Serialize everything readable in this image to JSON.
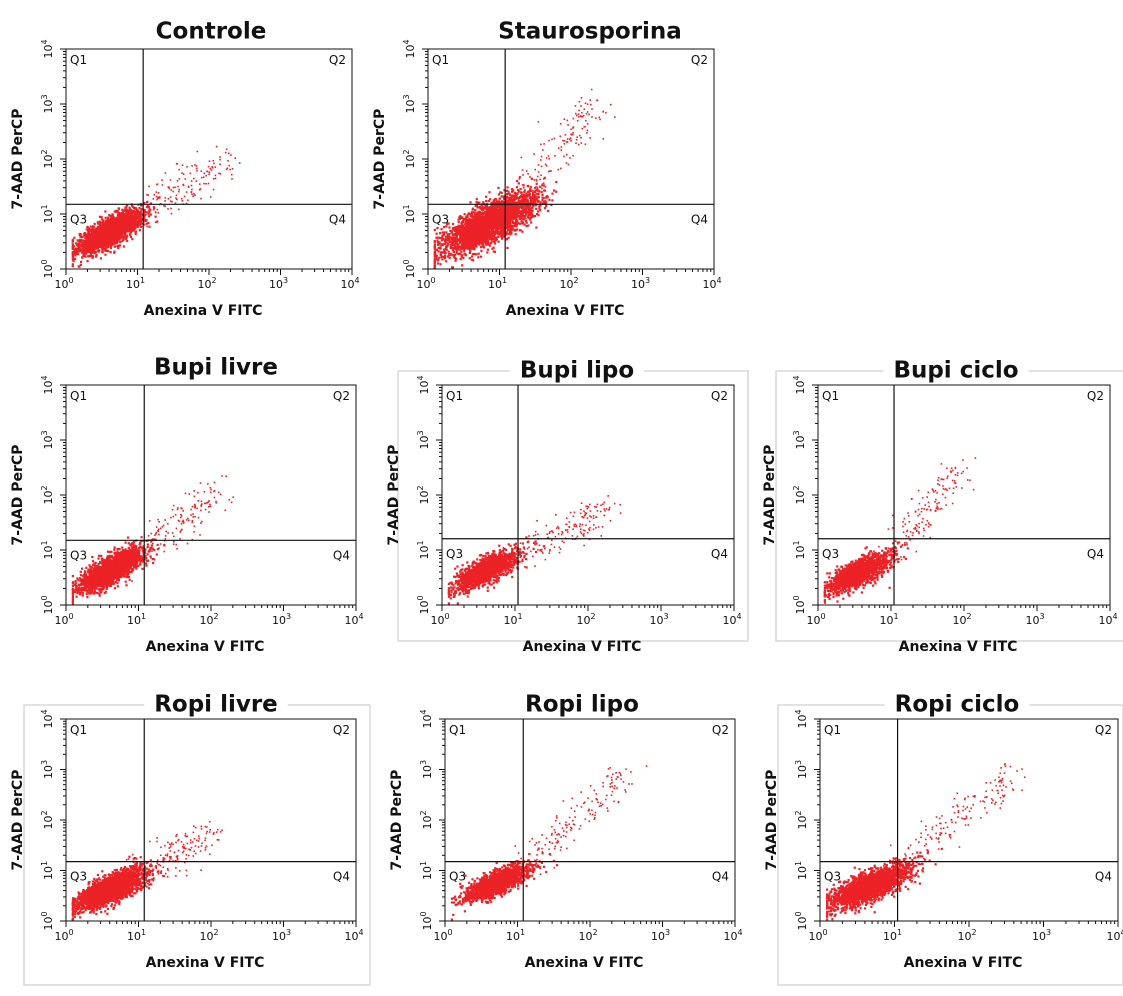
{
  "chart_data": [
    {
      "type": "scatter",
      "title": "Controle",
      "xlabel": "Anexina V FITC",
      "ylabel": "7-AAD PerCP",
      "xscale": "log",
      "yscale": "log",
      "xlim": [
        1,
        10000
      ],
      "ylim": [
        1,
        10000
      ],
      "x_ticks": [
        "10^0",
        "10^1",
        "10^2",
        "10^3",
        "10^4"
      ],
      "y_ticks": [
        "10^0",
        "10^1",
        "10^2",
        "10^3",
        "10^4"
      ],
      "quadrant_gate": {
        "x": 12,
        "y": 15
      },
      "quadrant_labels": [
        "Q1",
        "Q2",
        "Q3",
        "Q4"
      ],
      "population": {
        "center": [
          4,
          5
        ],
        "spread": [
          0.22,
          0.19
        ],
        "tail_to": [
          180,
          100
        ],
        "density": "high"
      },
      "frame": false
    },
    {
      "type": "scatter",
      "title": "Staurosporina",
      "xlabel": "Anexina V FITC",
      "ylabel": "7-AAD PerCP",
      "xscale": "log",
      "yscale": "log",
      "xlim": [
        1,
        10000
      ],
      "ylim": [
        1,
        10000
      ],
      "x_ticks": [
        "10^0",
        "10^1",
        "10^2",
        "10^3",
        "10^4"
      ],
      "y_ticks": [
        "10^0",
        "10^1",
        "10^2",
        "10^3",
        "10^4"
      ],
      "quadrant_gate": {
        "x": 12,
        "y": 15
      },
      "quadrant_labels": [
        "Q1",
        "Q2",
        "Q3",
        "Q4"
      ],
      "population": {
        "center": [
          7,
          7
        ],
        "spread": [
          0.32,
          0.27
        ],
        "tail_to": [
          220,
          1100
        ],
        "density": "very-high"
      },
      "frame": false
    },
    {
      "type": "scatter",
      "title": "Bupi livre",
      "xlabel": "Anexina V FITC",
      "ylabel": "7-AAD PerCP",
      "xscale": "log",
      "yscale": "log",
      "xlim": [
        1,
        10000
      ],
      "ylim": [
        1,
        10000
      ],
      "x_ticks": [
        "10^0",
        "10^1",
        "10^2",
        "10^3",
        "10^4"
      ],
      "y_ticks": [
        "10^0",
        "10^1",
        "10^2",
        "10^3",
        "10^4"
      ],
      "quadrant_gate": {
        "x": 12,
        "y": 15
      },
      "quadrant_labels": [
        "Q1",
        "Q2",
        "Q3",
        "Q4"
      ],
      "population": {
        "center": [
          4,
          4.5
        ],
        "spread": [
          0.22,
          0.19
        ],
        "tail_to": [
          120,
          110
        ],
        "density": "high"
      },
      "frame": false
    },
    {
      "type": "scatter",
      "title": "Bupi lipo",
      "xlabel": "Anexina V FITC",
      "ylabel": "7-AAD PerCP",
      "xscale": "log",
      "yscale": "log",
      "xlim": [
        1,
        10000
      ],
      "ylim": [
        1,
        10000
      ],
      "x_ticks": [
        "10^0",
        "10^1",
        "10^2",
        "10^3",
        "10^4"
      ],
      "y_ticks": [
        "10^0",
        "10^1",
        "10^2",
        "10^3",
        "10^4"
      ],
      "quadrant_gate": {
        "x": 11,
        "y": 16
      },
      "quadrant_labels": [
        "Q1",
        "Q2",
        "Q3",
        "Q4"
      ],
      "population": {
        "center": [
          4,
          4.5
        ],
        "spread": [
          0.22,
          0.18
        ],
        "tail_to": [
          200,
          60
        ],
        "density": "medium"
      },
      "frame": true
    },
    {
      "type": "scatter",
      "title": "Bupi ciclo",
      "xlabel": "Anexina V FITC",
      "ylabel": "7-AAD PerCP",
      "xscale": "log",
      "yscale": "log",
      "xlim": [
        1,
        10000
      ],
      "ylim": [
        1,
        10000
      ],
      "x_ticks": [
        "10^0",
        "10^1",
        "10^2",
        "10^3",
        "10^4"
      ],
      "y_ticks": [
        "10^0",
        "10^1",
        "10^2",
        "10^3",
        "10^4"
      ],
      "quadrant_gate": {
        "x": 11,
        "y": 16
      },
      "quadrant_labels": [
        "Q1",
        "Q2",
        "Q3",
        "Q4"
      ],
      "population": {
        "center": [
          3.5,
          4
        ],
        "spread": [
          0.22,
          0.18
        ],
        "tail_to": [
          90,
          300
        ],
        "density": "medium"
      },
      "frame": true
    },
    {
      "type": "scatter",
      "title": "Ropi livre",
      "xlabel": "Anexina V FITC",
      "ylabel": "7-AAD PerCP",
      "xscale": "log",
      "yscale": "log",
      "xlim": [
        1,
        10000
      ],
      "ylim": [
        1,
        10000
      ],
      "x_ticks": [
        "10^0",
        "10^1",
        "10^2",
        "10^3",
        "10^4"
      ],
      "y_ticks": [
        "10^0",
        "10^1",
        "10^2",
        "10^3",
        "10^4"
      ],
      "quadrant_gate": {
        "x": 12,
        "y": 15
      },
      "quadrant_labels": [
        "Q1",
        "Q2",
        "Q3",
        "Q4"
      ],
      "population": {
        "center": [
          4,
          4.5
        ],
        "spread": [
          0.24,
          0.2
        ],
        "tail_to": [
          110,
          60
        ],
        "density": "high"
      },
      "frame": true
    },
    {
      "type": "scatter",
      "title": "Ropi lipo",
      "xlabel": "Anexina V FITC",
      "ylabel": "7-AAD PerCP",
      "xscale": "log",
      "yscale": "log",
      "xlim": [
        1,
        10000
      ],
      "ylim": [
        1,
        10000
      ],
      "x_ticks": [
        "10^0",
        "10^1",
        "10^2",
        "10^3",
        "10^4"
      ],
      "y_ticks": [
        "10^0",
        "10^1",
        "10^2",
        "10^3",
        "10^4"
      ],
      "quadrant_gate": {
        "x": 12,
        "y": 15
      },
      "quadrant_labels": [
        "Q1",
        "Q2",
        "Q3",
        "Q4"
      ],
      "population": {
        "center": [
          5,
          6
        ],
        "spread": [
          0.22,
          0.18
        ],
        "tail_to": [
          300,
          800
        ],
        "density": "medium"
      },
      "frame": false
    },
    {
      "type": "scatter",
      "title": "Ropi ciclo",
      "xlabel": "Anexina V FITC",
      "ylabel": "7-AAD PerCP",
      "xscale": "log",
      "yscale": "log",
      "xlim": [
        1,
        10000
      ],
      "ylim": [
        1,
        10000
      ],
      "x_ticks": [
        "10^0",
        "10^1",
        "10^2",
        "10^3",
        "10^4"
      ],
      "y_ticks": [
        "10^0",
        "10^1",
        "10^2",
        "10^3",
        "10^4"
      ],
      "quadrant_gate": {
        "x": 11,
        "y": 15
      },
      "quadrant_labels": [
        "Q1",
        "Q2",
        "Q3",
        "Q4"
      ],
      "population": {
        "center": [
          4.5,
          5
        ],
        "spread": [
          0.26,
          0.21
        ],
        "tail_to": [
          400,
          900
        ],
        "density": "high"
      },
      "frame": true
    }
  ],
  "colors": {
    "events": "#ec2227",
    "axes": "#111111",
    "frame": "#cfcfcf",
    "background": "#ffffff"
  }
}
